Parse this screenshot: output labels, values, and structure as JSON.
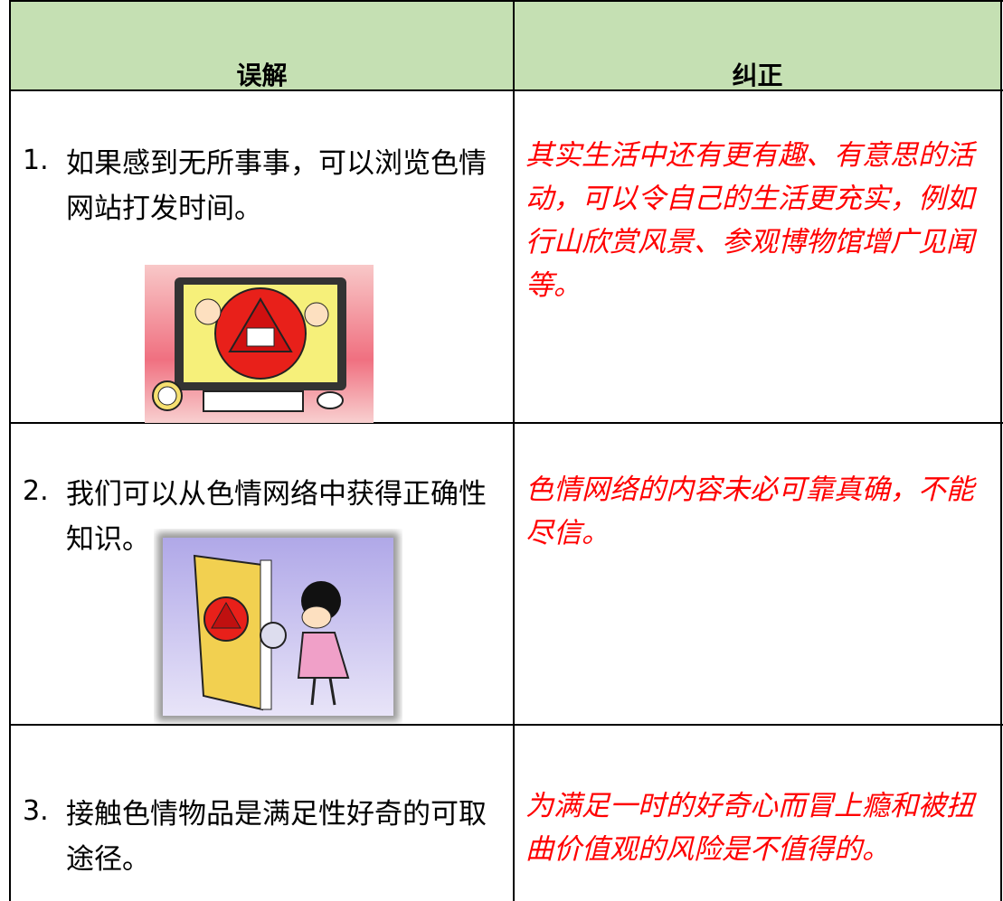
{
  "table": {
    "header": [
      "误解",
      "纠正"
    ],
    "rows": [
      {
        "number": "1.",
        "misconception": "如果感到无所事事，可以浏览色情网站打发时间。",
        "correction": "其实生活中还有更有趣、有意思的活动，可以令自己的生活更充实，例如行山欣赏风景、参观博物馆增广见闻等。"
      },
      {
        "number": "2.",
        "misconception": "我们可以从色情网络中获得正确性知识。",
        "correction": "色情网络的内容未必可靠真确，不能尽信。"
      },
      {
        "number": "3.",
        "misconception": "接触色情物品是满足性好奇的可取途径。",
        "correction": "为满足一时的好奇心而冒上瘾和被扭曲价值观的风险是不值得的。"
      }
    ]
  }
}
